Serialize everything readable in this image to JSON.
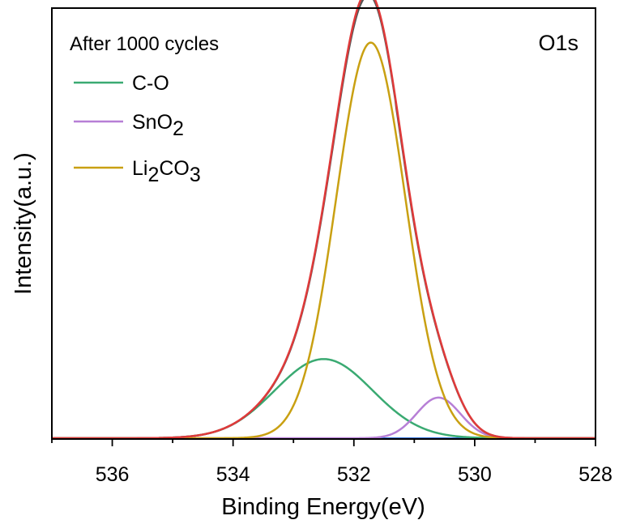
{
  "chart_data": {
    "type": "line",
    "title": "",
    "annotation": "After 1000 cycles",
    "panel_label": "O1s",
    "xlabel": "Binding Energy(eV)",
    "ylabel": "Intensity(a.u.)",
    "xlim": [
      537,
      528
    ],
    "x_reversed": true,
    "x_ticks": [
      536,
      534,
      532,
      530,
      528
    ],
    "y_ticks_shown": false,
    "ylim": [
      0,
      1.06
    ],
    "legend_position": "top-left",
    "grid": false,
    "legend": [
      {
        "label": "C-O",
        "base": "C-O",
        "color": "#3aaa72"
      },
      {
        "label": "SnO2",
        "base": "SnO",
        "sub": "2",
        "color": "#b77fd6"
      },
      {
        "label": "Li2CO3",
        "parts": [
          "Li",
          "2",
          "CO",
          "3"
        ],
        "color": "#c9a012"
      }
    ],
    "series": [
      {
        "name": "C-O",
        "model": "gaussian",
        "center": 532.5,
        "fwhm": 1.9,
        "height": 0.195,
        "color": "#3aaa72"
      },
      {
        "name": "SnO2",
        "model": "gaussian",
        "center": 530.6,
        "fwhm": 0.85,
        "height": 0.1,
        "color": "#b77fd6"
      },
      {
        "name": "Li2CO3",
        "model": "gaussian",
        "center": 531.72,
        "fwhm": 1.35,
        "height": 0.975,
        "color": "#c9a012"
      }
    ],
    "baseline_color": "#2f6fd6",
    "envelope_color": "#e03a3a",
    "raw_color": "#555555"
  }
}
